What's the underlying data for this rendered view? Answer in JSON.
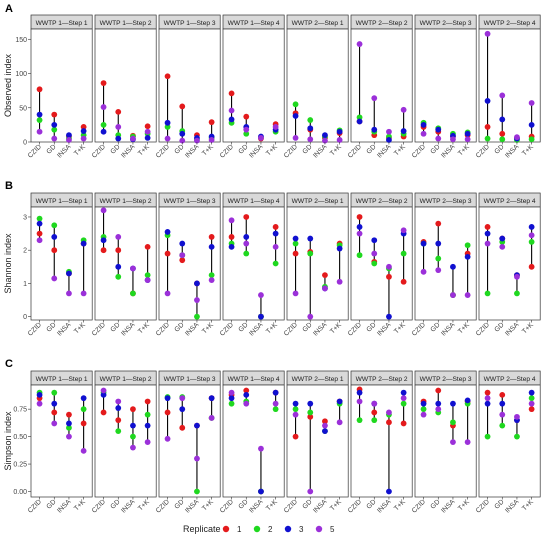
{
  "figure": {
    "legend": {
      "title": "Replicate",
      "items": [
        {
          "label": "1",
          "color": "#e41a1c"
        },
        {
          "label": "2",
          "color": "#1fd81f"
        },
        {
          "label": "3",
          "color": "#1010d0"
        },
        {
          "label": "5",
          "color": "#9b30d9"
        }
      ]
    }
  },
  "chart_data": [
    {
      "type": "scatter",
      "panel_label": "A",
      "ylabel": "Observed index",
      "ylim": [
        0,
        165
      ],
      "yticks": [
        0,
        50,
        100,
        150
      ],
      "categories": [
        "CZID",
        "GD",
        "INSA",
        "T+K"
      ],
      "facets": [
        {
          "title": "WWTP 1—Step 1",
          "values": {
            "1": [
              77,
              40,
              8,
              22
            ],
            "2": [
              32,
              18,
              5,
              10
            ],
            "3": [
              40,
              25,
              10,
              16
            ],
            "5": [
              15,
              5,
              3,
              5
            ]
          }
        },
        {
          "title": "WWTP 1—Step 2",
          "values": {
            "1": [
              86,
              44,
              9,
              23
            ],
            "2": [
              25,
              10,
              8,
              12
            ],
            "3": [
              15,
              5,
              4,
              6
            ],
            "5": [
              51,
              22,
              5,
              15
            ]
          }
        },
        {
          "title": "WWTP 1—Step 3",
          "values": {
            "1": [
              96,
              52,
              10,
              29
            ],
            "2": [
              22,
              16,
              4,
              6
            ],
            "3": [
              28,
              12,
              6,
              8
            ],
            "5": [
              5,
              2,
              2,
              3
            ]
          }
        },
        {
          "title": "WWTP 1—Step 4",
          "values": {
            "1": [
              71,
              37,
              5,
              26
            ],
            "2": [
              28,
              12,
              7,
              15
            ],
            "3": [
              33,
              22,
              8,
              18
            ],
            "5": [
              46,
              18,
              6,
              22
            ]
          }
        },
        {
          "title": "WWTP 2—Step 1",
          "values": {
            "1": [
              42,
              18,
              6,
              13
            ],
            "2": [
              55,
              32,
              8,
              17
            ],
            "3": [
              38,
              20,
              10,
              15
            ],
            "5": [
              6,
              4,
              2,
              3
            ]
          }
        },
        {
          "title": "WWTP 2—Step 2",
          "values": {
            "1": [
              30,
              10,
              6,
              8
            ],
            "2": [
              36,
              15,
              8,
              12
            ],
            "3": [
              30,
              18,
              3,
              16
            ],
            "5": [
              143,
              64,
              15,
              47
            ]
          }
        },
        {
          "title": "WWTP 2—Step 3",
          "values": {
            "1": [
              22,
              15,
              8,
              10
            ],
            "2": [
              28,
              20,
              12,
              14
            ],
            "3": [
              25,
              18,
              9,
              12
            ],
            "5": [
              12,
              5,
              4,
              4
            ]
          }
        },
        {
          "title": "WWTP 2—Step 4",
          "values": {
            "1": [
              22,
              12,
              6,
              8
            ],
            "2": [
              5,
              4,
              3,
              4
            ],
            "3": [
              60,
              33,
              5,
              25
            ],
            "5": [
              158,
              68,
              7,
              57
            ]
          }
        }
      ]
    },
    {
      "type": "scatter",
      "panel_label": "B",
      "ylabel": "Shannon index",
      "ylim": [
        -0.1,
        3.3
      ],
      "yticks": [
        0,
        1,
        2,
        3
      ],
      "categories": [
        "CZID",
        "GD",
        "INSA",
        "T+K"
      ],
      "facets": [
        {
          "title": "WWTP 1—Step 1",
          "values": {
            "1": [
              2.5,
              2.0,
              1.3,
              2.2
            ],
            "2": [
              2.95,
              2.75,
              1.35,
              2.3
            ],
            "3": [
              2.8,
              2.4,
              1.3,
              2.2
            ],
            "5": [
              2.3,
              1.15,
              0.7,
              0.7
            ]
          }
        },
        {
          "title": "WWTP 1—Step 2",
          "values": {
            "1": [
              2.0,
              2.0,
              0.7,
              2.1
            ],
            "2": [
              2.4,
              1.2,
              0.7,
              1.25
            ],
            "3": [
              2.3,
              1.5,
              1.45,
              1.1
            ],
            "5": [
              3.2,
              2.4,
              1.45,
              1.1
            ]
          }
        },
        {
          "title": "WWTP 1—Step 3",
          "values": {
            "1": [
              1.9,
              1.7,
              1.0,
              2.4
            ],
            "2": [
              2.45,
              1.85,
              0.0,
              1.25
            ],
            "3": [
              2.55,
              2.2,
              1.0,
              2.1
            ],
            "5": [
              0.7,
              1.85,
              0.5,
              1.1
            ]
          }
        },
        {
          "title": "WWTP 1—Step 4",
          "values": {
            "1": [
              2.4,
              3.0,
              0.0,
              2.7
            ],
            "2": [
              2.2,
              1.9,
              0.0,
              1.6
            ],
            "3": [
              2.1,
              2.4,
              0.0,
              2.5
            ],
            "5": [
              2.9,
              2.2,
              0.65,
              2.1
            ]
          }
        },
        {
          "title": "WWTP 2—Step 1",
          "values": {
            "1": [
              1.9,
              1.95,
              1.25,
              2.2
            ],
            "2": [
              2.2,
              1.9,
              0.9,
              2.15
            ],
            "3": [
              2.35,
              2.35,
              0.85,
              2.05
            ],
            "5": [
              0.7,
              0.0,
              0.85,
              1.05
            ]
          }
        },
        {
          "title": "WWTP 2—Step 2",
          "values": {
            "1": [
              3.0,
              1.65,
              1.2,
              1.05
            ],
            "2": [
              1.85,
              1.6,
              1.45,
              1.9
            ],
            "3": [
              2.7,
              2.3,
              0.0,
              2.5
            ],
            "5": [
              2.5,
              1.9,
              1.5,
              2.6
            ]
          }
        },
        {
          "title": "WWTP 2—Step 3",
          "values": {
            "1": [
              2.25,
              2.8,
              0.65,
              1.9
            ],
            "2": [
              2.2,
              1.75,
              0.65,
              2.15
            ],
            "3": [
              2.2,
              2.2,
              1.5,
              1.8
            ],
            "5": [
              1.35,
              1.4,
              0.65,
              0.65
            ]
          }
        },
        {
          "title": "WWTP 2—Step 4",
          "values": {
            "1": [
              2.7,
              2.35,
              1.25,
              1.5
            ],
            "2": [
              0.7,
              2.25,
              0.7,
              2.25
            ],
            "3": [
              2.5,
              2.35,
              1.25,
              2.7
            ],
            "5": [
              2.2,
              2.1,
              1.2,
              2.45
            ]
          }
        }
      ]
    },
    {
      "type": "scatter",
      "panel_label": "C",
      "ylabel": "Simpson index",
      "ylim": [
        -0.05,
        0.97
      ],
      "yticks": [
        0.0,
        0.25,
        0.5,
        0.75
      ],
      "ytick_labels": [
        "0.00",
        "0.25",
        "0.50",
        "0.75"
      ],
      "categories": [
        "CZID",
        "GD",
        "INSA",
        "T+K"
      ],
      "facets": [
        {
          "title": "WWTP 1—Step 1",
          "values": {
            "1": [
              0.85,
              0.72,
              0.7,
              0.62
            ],
            "2": [
              0.9,
              0.9,
              0.58,
              0.75
            ],
            "3": [
              0.88,
              0.8,
              0.62,
              0.85
            ],
            "5": [
              0.8,
              0.62,
              0.5,
              0.37
            ]
          }
        },
        {
          "title": "WWTP 1—Step 2",
          "values": {
            "1": [
              0.72,
              0.65,
              0.75,
              0.82
            ],
            "2": [
              0.9,
              0.55,
              0.5,
              0.7
            ],
            "3": [
              0.88,
              0.76,
              0.6,
              0.6
            ],
            "5": [
              0.92,
              0.82,
              0.4,
              0.45
            ]
          }
        },
        {
          "title": "WWTP 1—Step 3",
          "values": {
            "1": [
              0.72,
              0.58,
              0.6,
              0.85
            ],
            "2": [
              0.86,
              0.86,
              0.0,
              0.67
            ],
            "3": [
              0.85,
              0.75,
              0.6,
              0.85
            ],
            "5": [
              0.48,
              0.85,
              0.3,
              0.67
            ]
          }
        },
        {
          "title": "WWTP 1—Step 4",
          "values": {
            "1": [
              0.88,
              0.92,
              0.0,
              0.9
            ],
            "2": [
              0.8,
              0.82,
              0.0,
              0.75
            ],
            "3": [
              0.85,
              0.88,
              0.0,
              0.9
            ],
            "5": [
              0.9,
              0.8,
              0.39,
              0.8
            ]
          }
        },
        {
          "title": "WWTP 2—Step 1",
          "values": {
            "1": [
              0.5,
              0.68,
              0.64,
              0.82
            ],
            "2": [
              0.75,
              0.72,
              0.55,
              0.8
            ],
            "3": [
              0.8,
              0.8,
              0.55,
              0.82
            ],
            "5": [
              0.7,
              0.0,
              0.6,
              0.63
            ]
          }
        },
        {
          "title": "WWTP 2—Step 2",
          "values": {
            "1": [
              0.93,
              0.72,
              0.63,
              0.62
            ],
            "2": [
              0.65,
              0.65,
              0.7,
              0.8
            ],
            "3": [
              0.9,
              0.8,
              0.0,
              0.9
            ],
            "5": [
              0.82,
              0.8,
              0.72,
              0.85
            ]
          }
        },
        {
          "title": "WWTP 2—Step 3",
          "values": {
            "1": [
              0.82,
              0.92,
              0.6,
              0.82
            ],
            "2": [
              0.75,
              0.72,
              0.63,
              0.8
            ],
            "3": [
              0.8,
              0.8,
              0.8,
              0.83
            ],
            "5": [
              0.7,
              0.75,
              0.45,
              0.45
            ]
          }
        },
        {
          "title": "WWTP 2—Step 4",
          "values": {
            "1": [
              0.9,
              0.88,
              0.65,
              0.75
            ],
            "2": [
              0.5,
              0.6,
              0.5,
              0.85
            ],
            "3": [
              0.8,
              0.8,
              0.65,
              0.9
            ],
            "5": [
              0.85,
              0.7,
              0.68,
              0.8
            ]
          }
        }
      ]
    }
  ]
}
